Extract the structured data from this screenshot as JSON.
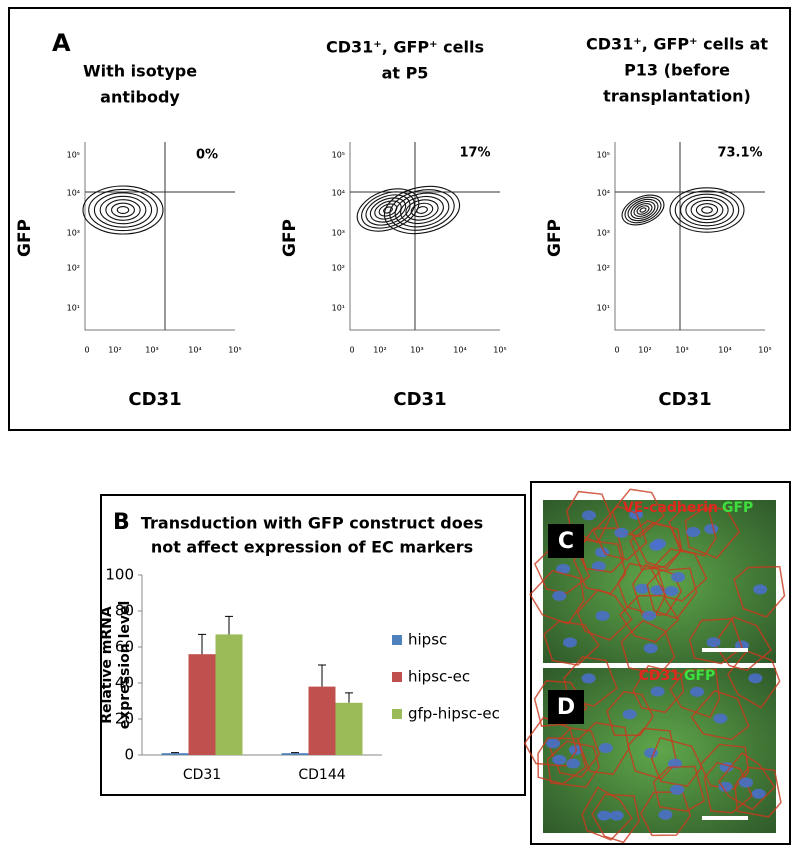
{
  "panel_a": {
    "label": "A",
    "x_label": "CD31",
    "y_label": "GFP",
    "xticks": [
      "0",
      "10²",
      "10³",
      "10⁴",
      "10⁵"
    ],
    "yticks": [
      "10⁵",
      "10⁴",
      "10³",
      "10²",
      "10¹"
    ],
    "plots": [
      {
        "title": [
          "With isotype",
          "antibody"
        ],
        "percent": "0%"
      },
      {
        "title": [
          "CD31⁺, GFP⁺ cells",
          "at P5"
        ],
        "percent": "17%"
      },
      {
        "title": [
          "CD31⁺, GFP⁺ cells at",
          "P13  (before",
          "transplantation)"
        ],
        "percent": "73.1%"
      }
    ]
  },
  "chart_data": {
    "type": "bar",
    "label": "B",
    "title": [
      "Transduction with GFP construct does",
      "not affect expression of EC markers"
    ],
    "y_label": [
      "Relative mRNA",
      "expression level"
    ],
    "categories": [
      "CD31",
      "CD144"
    ],
    "series": [
      {
        "name": "hipsc",
        "color": "#4f81bd",
        "values": [
          1,
          1
        ],
        "errors": [
          0.3,
          0.3
        ]
      },
      {
        "name": "hipsc-ec",
        "color": "#c0504d",
        "values": [
          56,
          38
        ],
        "errors": [
          11,
          12
        ]
      },
      {
        "name": "gfp-hipsc-ec",
        "color": "#9bbb59",
        "values": [
          67,
          29
        ],
        "errors": [
          10,
          5.5
        ]
      }
    ],
    "ylim": [
      0,
      100
    ],
    "yticks": [
      0,
      20,
      40,
      60,
      80,
      100
    ],
    "legend": "right"
  },
  "panel_c": {
    "label": "C",
    "stain": "VE-cadherin",
    "gfp": "GFP"
  },
  "panel_d": {
    "label": "D",
    "stain": "CD31",
    "gfp": "GFP"
  }
}
